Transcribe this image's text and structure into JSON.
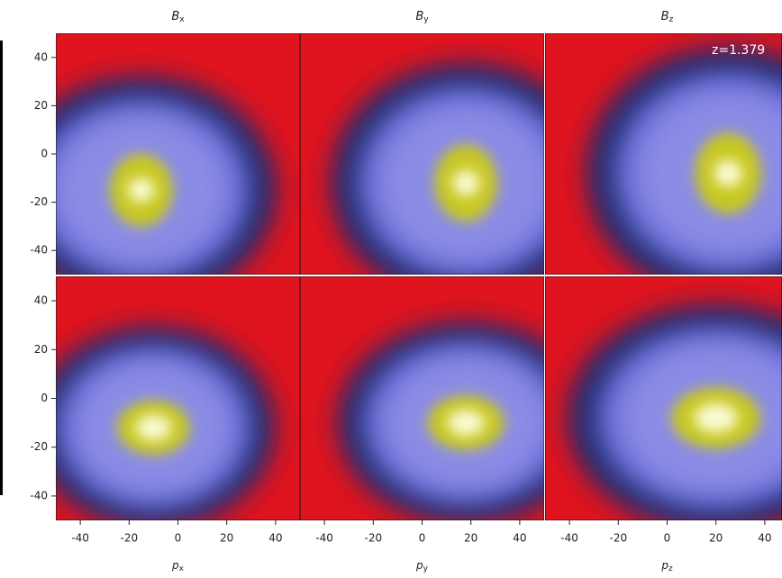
{
  "figure": {
    "columns": [
      {
        "title": {
          "base": "B",
          "sub": "x"
        },
        "xlabel": {
          "base": "p",
          "sub": "x"
        }
      },
      {
        "title": {
          "base": "B",
          "sub": "y"
        },
        "xlabel": {
          "base": "p",
          "sub": "y"
        }
      },
      {
        "title": {
          "base": "B",
          "sub": "z"
        },
        "xlabel": {
          "base": "p",
          "sub": "z"
        }
      }
    ],
    "annotation": "z=1.379",
    "xlim": [
      -50,
      50
    ],
    "ylim": [
      -50,
      50
    ],
    "xticks": [
      -40,
      -20,
      0,
      20,
      40
    ],
    "yticks": [
      -40,
      -20,
      0,
      20,
      40
    ]
  }
}
